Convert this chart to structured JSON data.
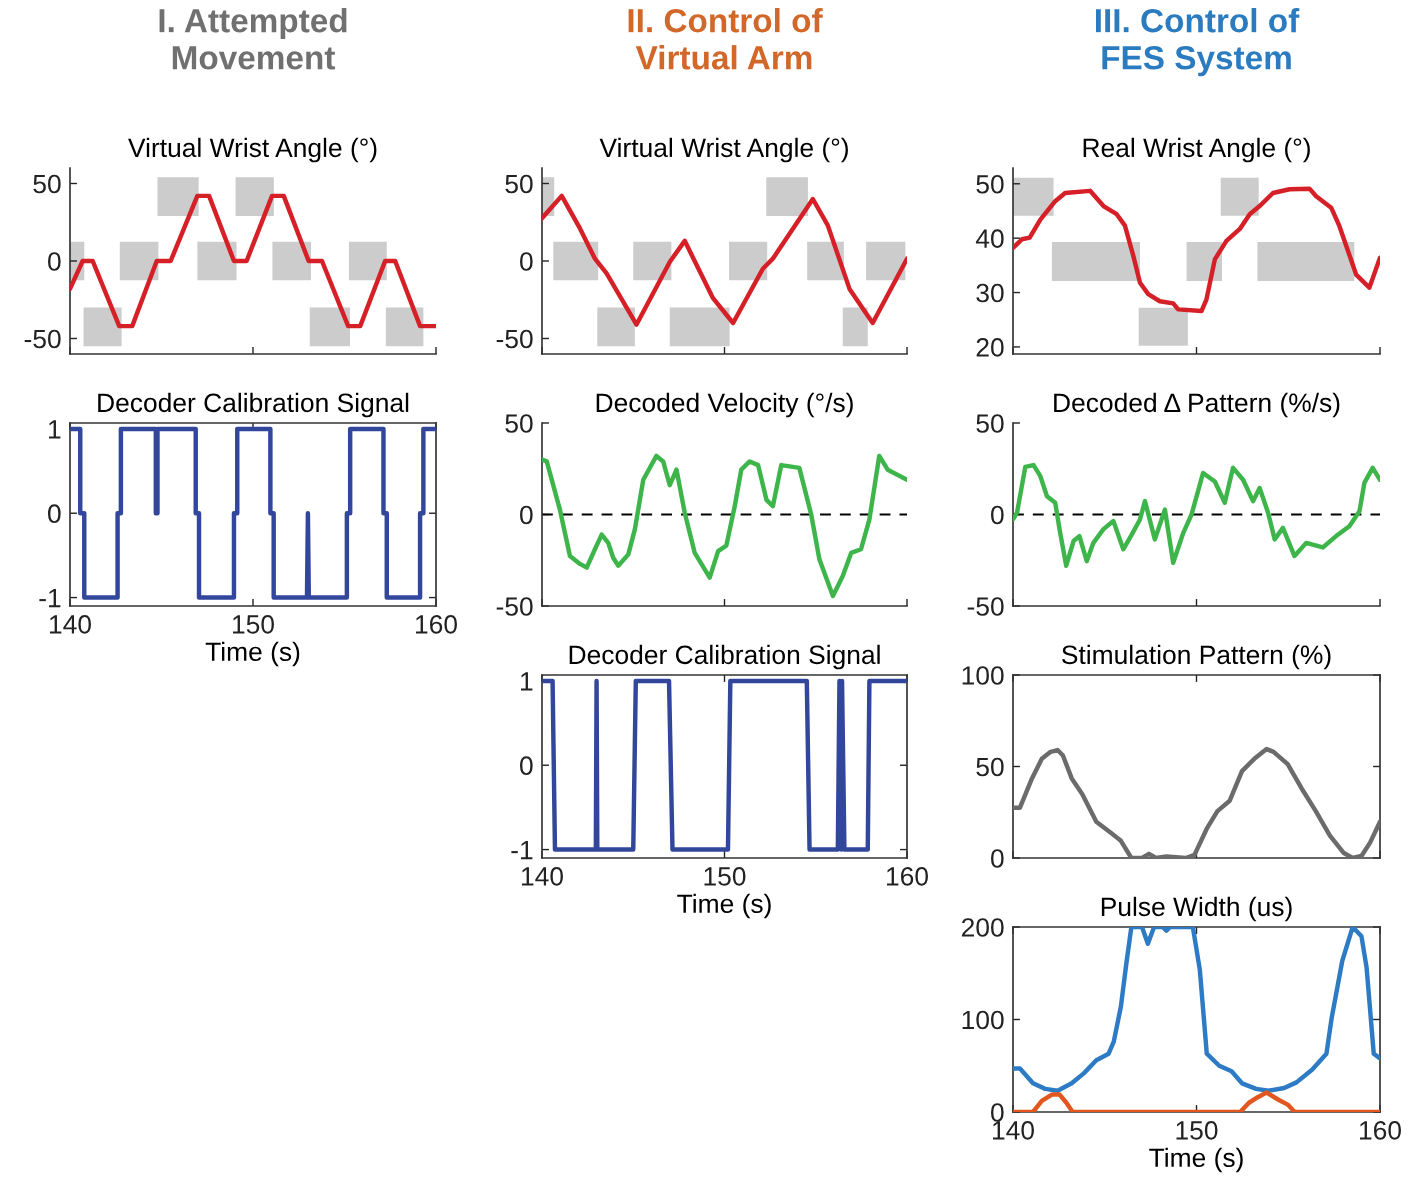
{
  "chart_data": [
    {
      "type": "line",
      "title": "I. Attempted Movement",
      "subtitle": "Virtual Wrist Angle (°)",
      "xlim": [
        140,
        160
      ],
      "xticks": [
        140,
        150,
        160
      ],
      "ylim": [
        -60,
        60
      ],
      "yticks": [
        -50,
        0,
        50
      ],
      "tick_labels": "y",
      "grid": false,
      "legend": false,
      "series": [
        {
          "type": "area",
          "color": "#cccccc",
          "x": [
            140,
            140,
            140.78,
            140.78,
            null,
            140.74,
            140.74,
            142.82,
            142.82,
            null,
            142.72,
            142.72,
            144.83,
            144.83,
            null,
            144.78,
            144.78,
            147.03,
            147.03,
            null,
            146.96,
            146.96,
            149.1,
            149.1,
            null,
            149.05,
            149.05,
            151.14,
            151.14,
            null,
            151.06,
            151.06,
            153.17,
            153.17,
            null,
            153.1,
            153.1,
            155.3,
            155.3,
            null,
            155.24,
            155.24,
            157.31,
            157.31,
            null,
            157.26,
            157.26,
            159.31,
            159.31
          ],
          "values": [
            -12.5,
            12.5,
            12.5,
            -12.5,
            null,
            -55,
            -30,
            -30,
            -55,
            null,
            -12.5,
            12.5,
            12.5,
            -12.5,
            null,
            29,
            54,
            54,
            29,
            null,
            -12.5,
            12.5,
            12.5,
            -12.5,
            null,
            29,
            54,
            54,
            29,
            null,
            -12.5,
            12.5,
            12.5,
            -12.5,
            null,
            -55,
            -30,
            -30,
            -55,
            null,
            -12.5,
            12.5,
            12.5,
            -12.5,
            null,
            -55,
            -30,
            -30,
            -55
          ]
        },
        {
          "color": "#d62027",
          "x": [
            140,
            140.69,
            141.24,
            142.69,
            143.4,
            144.74,
            145.5,
            146.96,
            147.6,
            148.96,
            149.65,
            151.04,
            151.68,
            153.04,
            153.77,
            155.2,
            155.86,
            157.22,
            157.77,
            159.13,
            159.95
          ],
          "values": [
            -18,
            0,
            0,
            -42,
            -42,
            0,
            0,
            42,
            42,
            0,
            0,
            42,
            42,
            0,
            0,
            -42,
            -42,
            0,
            0,
            -42,
            -42
          ]
        }
      ]
    },
    {
      "type": "line",
      "title": "Decoder Calibration Signal",
      "xlabel": "Time (s)",
      "xlim": [
        140,
        160
      ],
      "xticks": [
        140,
        150,
        160
      ],
      "ylim": [
        -1.1,
        1.07
      ],
      "yticks": [
        -1,
        0,
        1
      ],
      "grid": false,
      "legend": false,
      "series": [
        {
          "color": "#32479c",
          "x": [
            140,
            140.56,
            140.56,
            140.78,
            140.78,
            142.6,
            142.6,
            142.78,
            142.78,
            144.69,
            144.69,
            144.78,
            144.78,
            146.87,
            146.87,
            147.05,
            147.05,
            148.96,
            148.96,
            149.14,
            149.14,
            150.95,
            150.95,
            151.13,
            151.13,
            152.95,
            153.0,
            153.05,
            155.13,
            155.13,
            155.31,
            155.31,
            157.13,
            157.13,
            157.31,
            157.31,
            159.13,
            159.13,
            159.31,
            159.31,
            160
          ],
          "values": [
            1,
            1,
            0,
            0,
            -1,
            -1,
            0,
            0,
            1,
            1,
            0,
            0,
            1,
            1,
            0,
            0,
            -1,
            -1,
            0,
            0,
            1,
            1,
            0,
            0,
            -1,
            -1,
            0,
            -1,
            -1,
            0,
            0,
            1,
            1,
            0,
            0,
            -1,
            -1,
            0,
            0,
            1,
            1
          ]
        }
      ]
    },
    {
      "type": "line",
      "title": "II. Control of Virtual Arm",
      "subtitle": "Virtual Wrist Angle (°)",
      "xlim": [
        140,
        160
      ],
      "xticks": [
        140,
        150,
        160
      ],
      "ylim": [
        -60,
        60
      ],
      "yticks": [
        -50,
        0,
        50
      ],
      "tick_labels": "y",
      "grid": false,
      "legend": false,
      "series": [
        {
          "type": "area",
          "color": "#cccccc",
          "x": [
            140,
            140,
            140.67,
            140.67,
            null,
            140.62,
            140.62,
            143.08,
            143.08,
            null,
            143.03,
            143.03,
            145.09,
            145.09,
            null,
            145.0,
            145.0,
            147.09,
            147.09,
            null,
            147.0,
            147.0,
            150.28,
            150.28,
            null,
            150.25,
            150.25,
            152.34,
            152.34,
            null,
            152.29,
            152.29,
            154.57,
            154.57,
            null,
            154.53,
            154.53,
            156.54,
            156.54,
            null,
            156.48,
            156.48,
            157.85,
            157.85,
            null,
            157.76,
            157.76,
            159.91,
            159.91
          ],
          "values": [
            29,
            54,
            54,
            29,
            null,
            -12.5,
            12.5,
            12.5,
            -12.5,
            null,
            -55,
            -30,
            -30,
            -55,
            null,
            -12.5,
            12.5,
            12.5,
            -12.5,
            null,
            -55,
            -30,
            -30,
            -55,
            null,
            -12.5,
            12.5,
            12.5,
            -12.5,
            null,
            29,
            54,
            54,
            29,
            null,
            -12.5,
            12.5,
            12.5,
            -12.5,
            null,
            -55,
            -30,
            -30,
            -55,
            null,
            -12.5,
            12.5,
            12.5,
            -12.5
          ]
        },
        {
          "color": "#d62027",
          "x": [
            140,
            141.08,
            142.08,
            142.9,
            143.54,
            145.18,
            147,
            147.82,
            149.37,
            150.47,
            152.1,
            152.65,
            154.84,
            155.66,
            156.85,
            158.12,
            160
          ],
          "values": [
            27.6,
            42,
            21,
            1.5,
            -8,
            -41,
            -0.6,
            13,
            -24,
            -40,
            -5,
            1.5,
            40,
            23,
            -18,
            -40,
            1.5
          ]
        }
      ]
    },
    {
      "type": "line",
      "title": "Decoded Velocity (°/s)",
      "xlim": [
        140,
        160
      ],
      "xticks": [
        140,
        150,
        160
      ],
      "ylim": [
        -50,
        50
      ],
      "yticks": [
        -50,
        0,
        50
      ],
      "tick_labels": "y",
      "grid": false,
      "legend": false,
      "ref_lines": [
        {
          "axis": "y",
          "value": 0,
          "color": "#000000",
          "line_style": "dashed"
        }
      ],
      "series": [
        {
          "color": "#3db54a",
          "x": [
            140,
            140.26,
            140.98,
            141.53,
            142.08,
            142.45,
            142.9,
            143.27,
            143.63,
            143.9,
            144.18,
            144.73,
            145.09,
            145.55,
            146.27,
            146.64,
            147,
            147.37,
            147.82,
            148.37,
            149.19,
            149.65,
            150.1,
            150.56,
            150.92,
            151.38,
            151.84,
            152.3,
            152.65,
            153.11,
            154.1,
            154.75,
            155.2,
            155.94,
            156.48,
            156.94,
            157.48,
            157.94,
            158.48,
            158.94,
            160
          ],
          "values": [
            30,
            29,
            2.7,
            -22.7,
            -27,
            -29,
            -19,
            -11,
            -15.5,
            -23.6,
            -28,
            -21.8,
            -8,
            19,
            32,
            29,
            16,
            24.5,
            1,
            -21,
            -34.5,
            -20,
            -17,
            4.5,
            24.5,
            29,
            27,
            8,
            4.5,
            27,
            25.5,
            0,
            -24.5,
            -44.5,
            -33.6,
            -21,
            -19,
            -2.7,
            32,
            24.5,
            19
          ]
        }
      ]
    },
    {
      "type": "line",
      "title": "Decoder Calibration Signal",
      "xlabel": "Time (s)",
      "xlim": [
        140,
        160
      ],
      "xticks": [
        140,
        150,
        160
      ],
      "ylim": [
        -1.1,
        1.07
      ],
      "yticks": [
        -1,
        0,
        1
      ],
      "grid": false,
      "legend": false,
      "series": [
        {
          "color": "#32479c",
          "x": [
            140,
            140.58,
            140.71,
            142.95,
            142.99,
            143.03,
            145.0,
            145.14,
            146.96,
            147.15,
            150.19,
            150.32,
            154.51,
            154.66,
            156.21,
            156.3,
            156.4,
            156.44,
            156.57,
            157.85,
            157.94,
            160
          ],
          "values": [
            1,
            1,
            -1,
            -1,
            1,
            -1,
            -1,
            1,
            1,
            -1,
            -1,
            1,
            1,
            -1,
            -1,
            1,
            -1,
            1,
            -1,
            -1,
            1,
            1
          ]
        }
      ]
    },
    {
      "type": "line",
      "title": "III. Control of FES System",
      "subtitle": "Real Wrist Angle (°)",
      "xlim": [
        140,
        160
      ],
      "xticks": [
        140,
        150,
        160
      ],
      "ylim": [
        18.7,
        52.9
      ],
      "yticks": [
        20,
        30,
        40,
        50
      ],
      "tick_labels": "y",
      "grid": false,
      "legend": false,
      "series": [
        {
          "type": "area",
          "color": "#cccccc",
          "x": [
            140,
            140,
            142.21,
            142.21,
            null,
            142.12,
            142.12,
            146.92,
            146.92,
            null,
            146.85,
            146.85,
            149.53,
            149.53,
            null,
            149.46,
            149.46,
            151.39,
            151.39,
            null,
            151.32,
            151.32,
            153.39,
            153.39,
            null,
            153.32,
            153.32,
            158.6,
            158.6
          ],
          "values": [
            44.1,
            51.1,
            51.1,
            44.1,
            null,
            32.1,
            39.3,
            39.3,
            32.1,
            null,
            20.2,
            27.2,
            27.2,
            20.2,
            null,
            32.1,
            39.3,
            39.3,
            32.1,
            null,
            44.1,
            51.1,
            51.1,
            44.1,
            null,
            32.1,
            39.3,
            39.3,
            32.1
          ]
        },
        {
          "color": "#d62027",
          "x": [
            140,
            140.49,
            140.91,
            141.49,
            142.3,
            142.84,
            144.2,
            144.93,
            145.65,
            146.1,
            146.56,
            146.92,
            147.37,
            148.0,
            148.73,
            149.0,
            150.27,
            150.54,
            151.0,
            151.63,
            152.36,
            152.9,
            153.44,
            154.17,
            155.07,
            156.16,
            156.52,
            157.34,
            157.79,
            158.7,
            159.42,
            160
          ],
          "values": [
            38.2,
            39.8,
            40.1,
            43.4,
            46.8,
            48.3,
            48.7,
            45.9,
            44.4,
            42.3,
            36.7,
            31.8,
            29.7,
            28.4,
            28,
            26.9,
            26.6,
            28.7,
            36.1,
            39.5,
            41.7,
            44.4,
            45.9,
            48.3,
            49,
            49.1,
            47.7,
            45.6,
            42.2,
            33.3,
            30.9,
            36.4
          ]
        }
      ]
    },
    {
      "type": "line",
      "title": "Decoded Δ Pattern (%/s)",
      "xlim": [
        140,
        160
      ],
      "xticks": [
        140,
        150,
        160
      ],
      "ylim": [
        -50,
        50
      ],
      "yticks": [
        -50,
        0,
        50
      ],
      "tick_labels": "y",
      "grid": false,
      "legend": false,
      "ref_lines": [
        {
          "axis": "y",
          "value": 0,
          "color": "#000000",
          "line_style": "dashed"
        }
      ],
      "series": [
        {
          "color": "#3db54a",
          "x": [
            140,
            140.22,
            140.67,
            141.12,
            141.49,
            141.85,
            142.3,
            142.57,
            142.9,
            143.3,
            143.62,
            144.02,
            144.38,
            144.93,
            145.47,
            146.01,
            146.47,
            146.92,
            147.19,
            147.73,
            148.28,
            148.73,
            149.28,
            149.73,
            150.36,
            151.0,
            151.54,
            151.99,
            152.54,
            153.08,
            153.44,
            153.9,
            154.26,
            154.71,
            155.34,
            155.98,
            156.88,
            157.61,
            158.33,
            158.88,
            159.15,
            159.6,
            160
          ],
          "values": [
            -2.7,
            1,
            26,
            27,
            21,
            10,
            6.4,
            -10,
            -28,
            -14.5,
            -11.8,
            -25.5,
            -15.5,
            -8,
            -3.6,
            -19,
            -11,
            -2.7,
            7.3,
            -13.6,
            2.7,
            -26.4,
            -10,
            0,
            22.7,
            18,
            6.4,
            25.5,
            19,
            7.3,
            14.5,
            1,
            -13.6,
            -7.3,
            -22.7,
            -15.5,
            -18,
            -11.8,
            -6.4,
            1.8,
            17.3,
            25.5,
            19
          ]
        }
      ]
    },
    {
      "type": "line",
      "title": "Stimulation Pattern (%)",
      "xlim": [
        140,
        160
      ],
      "xticks": [
        140,
        150,
        160
      ],
      "ylim": [
        0,
        100
      ],
      "yticks": [
        0,
        50,
        100
      ],
      "tick_labels": "y",
      "grid": false,
      "legend": false,
      "series": [
        {
          "color": "#6b6b6b",
          "x": [
            140,
            140.38,
            141,
            141.57,
            142.05,
            142.43,
            142.72,
            143.2,
            143.77,
            144.54,
            145.4,
            145.88,
            146.45,
            147.03,
            147.41,
            147.79,
            148.36,
            149.42,
            149.89,
            150.56,
            151.14,
            151.81,
            152.48,
            153.15,
            153.82,
            154.2,
            154.97,
            155.73,
            156.5,
            157.27,
            158.03,
            158.51,
            158.99,
            159.46,
            160
          ],
          "values": [
            27.5,
            27.5,
            42.7,
            54.2,
            58,
            59,
            56,
            43.5,
            35,
            19.8,
            13.2,
            9.4,
            0,
            0,
            2.3,
            0,
            0.8,
            0,
            1.7,
            16,
            25.6,
            31.3,
            47.5,
            54.2,
            59.5,
            58,
            51.3,
            38,
            25.6,
            12.2,
            2.7,
            0,
            1.1,
            8.4,
            19.8
          ]
        }
      ]
    },
    {
      "type": "line",
      "title": "Pulse Width (us)",
      "xlabel": "Time (s)",
      "xlim": [
        140,
        160
      ],
      "xticks": [
        140,
        150,
        160
      ],
      "ylim": [
        0,
        200
      ],
      "yticks": [
        0,
        100,
        200
      ],
      "grid": false,
      "legend": false,
      "series": [
        {
          "color": "#2d7bc4",
          "x": [
            140,
            140.38,
            141.09,
            141.76,
            142.43,
            143.2,
            143.87,
            144.54,
            145.21,
            145.49,
            145.88,
            146.16,
            146.45,
            147.03,
            147.35,
            147.69,
            148.17,
            148.36,
            148.56,
            149.8,
            150.18,
            150.56,
            151.24,
            151.91,
            152.48,
            153.25,
            153.92,
            154.78,
            155.45,
            156.31,
            157.08,
            157.36,
            157.94,
            158.51,
            158.99,
            159.27,
            159.66,
            160
          ],
          "values": [
            47,
            47,
            31,
            25,
            23,
            31,
            42,
            56,
            63,
            76,
            114,
            158,
            200,
            200,
            182,
            200,
            200,
            196,
            200,
            200,
            154,
            63,
            50,
            44,
            31,
            25,
            23,
            26,
            32,
            46,
            63,
            101,
            163,
            200,
            190,
            156,
            63,
            58
          ]
        },
        {
          "color": "#e2571f",
          "x": [
            140,
            141.09,
            141.57,
            142.14,
            142.53,
            142.91,
            143.25,
            152.38,
            152.86,
            153.34,
            153.82,
            154.49,
            154.97,
            155.35,
            160
          ],
          "values": [
            0,
            0,
            12,
            19,
            19,
            10,
            0,
            0,
            10,
            16,
            21,
            13,
            8,
            0,
            0
          ]
        }
      ]
    }
  ]
}
